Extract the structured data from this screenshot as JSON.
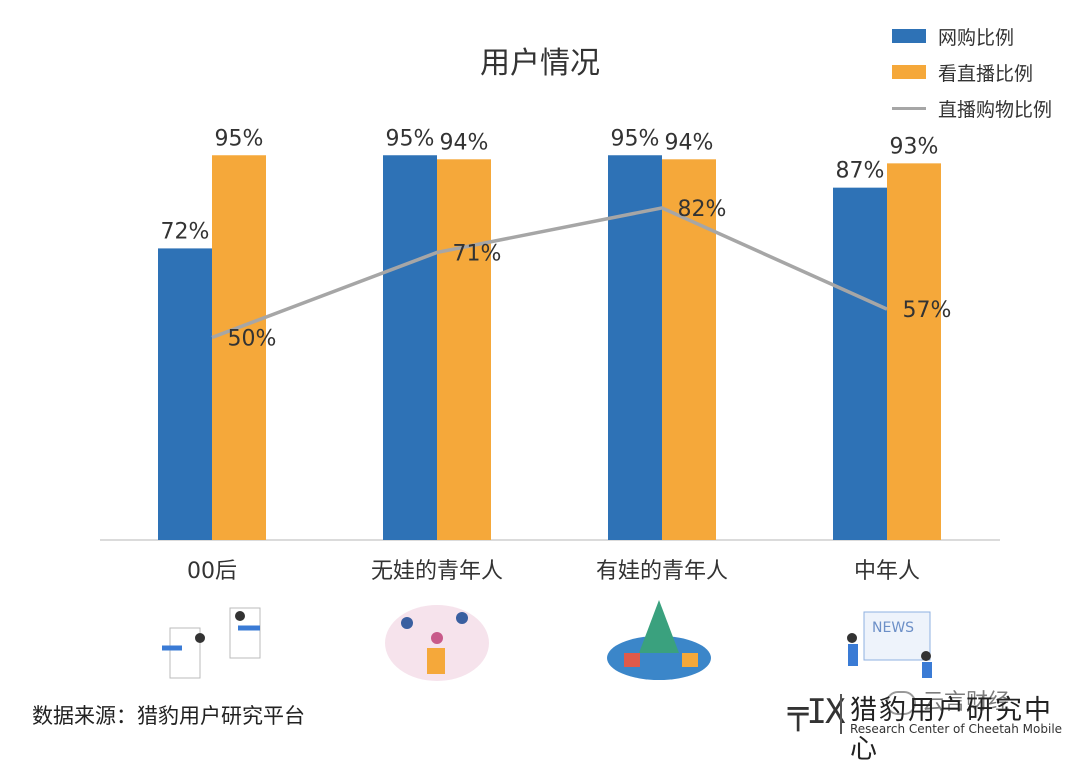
{
  "chart_data": {
    "type": "bar",
    "title": "用户情况",
    "categories": [
      "00后",
      "无娃的青年人",
      "有娃的青年人",
      "中年人"
    ],
    "series": [
      {
        "name": "网购比例",
        "type": "bar",
        "color": "#2e72b6",
        "values": [
          72,
          95,
          95,
          87
        ],
        "labels": [
          "72%",
          "95%",
          "95%",
          "87%"
        ]
      },
      {
        "name": "看直播比例",
        "type": "bar",
        "color": "#f5a83a",
        "values": [
          95,
          94,
          94,
          93
        ],
        "labels": [
          "95%",
          "94%",
          "94%",
          "93%"
        ]
      },
      {
        "name": "直播购物比例",
        "type": "line",
        "color": "#a6a6a6",
        "values": [
          50,
          71,
          82,
          57
        ],
        "labels": [
          "50%",
          "71%",
          "82%",
          "57%"
        ]
      }
    ],
    "ylim": [
      0,
      100
    ],
    "grid": false,
    "legend_position": "top-right"
  },
  "footer": {
    "source": "数据来源：猎豹用户研究平台",
    "logo_cn": "猎豹用户研究中心",
    "logo_en": "Research Center of Cheetah Mobile",
    "wechat_name": "云言财经"
  }
}
